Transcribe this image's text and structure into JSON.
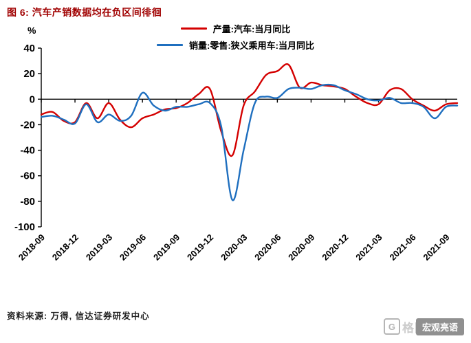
{
  "header": {
    "title": "图 6: 汽车产销数据均在负区间徘徊"
  },
  "colors": {
    "title": "#a00000",
    "accent_red": "#d40000",
    "accent_blue": "#1f6fbf",
    "axis": "#000000"
  },
  "legend": [
    {
      "label": "产量:汽车:当月同比",
      "color": "#d40000"
    },
    {
      "label": "销量:零售:狭义乘用车:当月同比",
      "color": "#1f6fbf"
    }
  ],
  "footer": {
    "source": "资料来源: 万得, 信达证券研发中心"
  },
  "watermark": {
    "logo": "G",
    "ghost": "格隆汇",
    "badge": "宏观亮语"
  },
  "chart_data": {
    "type": "line",
    "title": "图 6: 汽车产销数据均在负区间徘徊",
    "xlabel": "",
    "ylabel": "%",
    "ylim": [
      -100,
      40
    ],
    "yticks": [
      40,
      20,
      0,
      -20,
      -40,
      -60,
      -80,
      -100
    ],
    "grid": false,
    "legend_position": "top",
    "x_tick_labels": [
      "2018-09",
      "2018-12",
      "2019-03",
      "2019-06",
      "2019-09",
      "2019-12",
      "2020-03",
      "2020-06",
      "2020-09",
      "2020-12",
      "2021-03",
      "2021-06",
      "2021-09"
    ],
    "x": [
      "2018-09",
      "2018-10",
      "2018-11",
      "2018-12",
      "2019-01",
      "2019-02",
      "2019-03",
      "2019-04",
      "2019-05",
      "2019-06",
      "2019-07",
      "2019-08",
      "2019-09",
      "2019-10",
      "2019-11",
      "2019-12",
      "2020-01",
      "2020-02",
      "2020-03",
      "2020-04",
      "2020-05",
      "2020-06",
      "2020-07",
      "2020-08",
      "2020-09",
      "2020-10",
      "2020-11",
      "2020-12",
      "2021-01",
      "2021-02",
      "2021-03",
      "2021-04",
      "2021-05",
      "2021-06",
      "2021-07",
      "2021-08",
      "2021-09",
      "2021-10"
    ],
    "series": [
      {
        "name": "产量:汽车:当月同比",
        "color": "#d40000",
        "values": [
          -12,
          -10,
          -17,
          -18,
          -3,
          -15,
          -3,
          -16,
          -22,
          -15,
          -12,
          -8,
          -7,
          -3,
          4,
          8,
          -25,
          -44,
          -5,
          6,
          19,
          22,
          27,
          9,
          13,
          11,
          10,
          8,
          2,
          -3,
          -4,
          7,
          8,
          0,
          -5,
          -9,
          -4,
          -3
        ]
      },
      {
        "name": "销量:零售:狭义乘用车:当月同比",
        "color": "#1f6fbf",
        "values": [
          -14,
          -13,
          -16,
          -19,
          -4,
          -18,
          -12,
          -17,
          -13,
          5,
          -5,
          -9,
          -6,
          -6,
          -4,
          -3,
          -21,
          -79,
          -40,
          -3,
          2,
          1,
          8,
          9,
          8,
          11,
          11,
          7,
          4,
          0,
          -1,
          1,
          -3,
          -3,
          -6,
          -15,
          -6,
          -5
        ]
      }
    ]
  }
}
